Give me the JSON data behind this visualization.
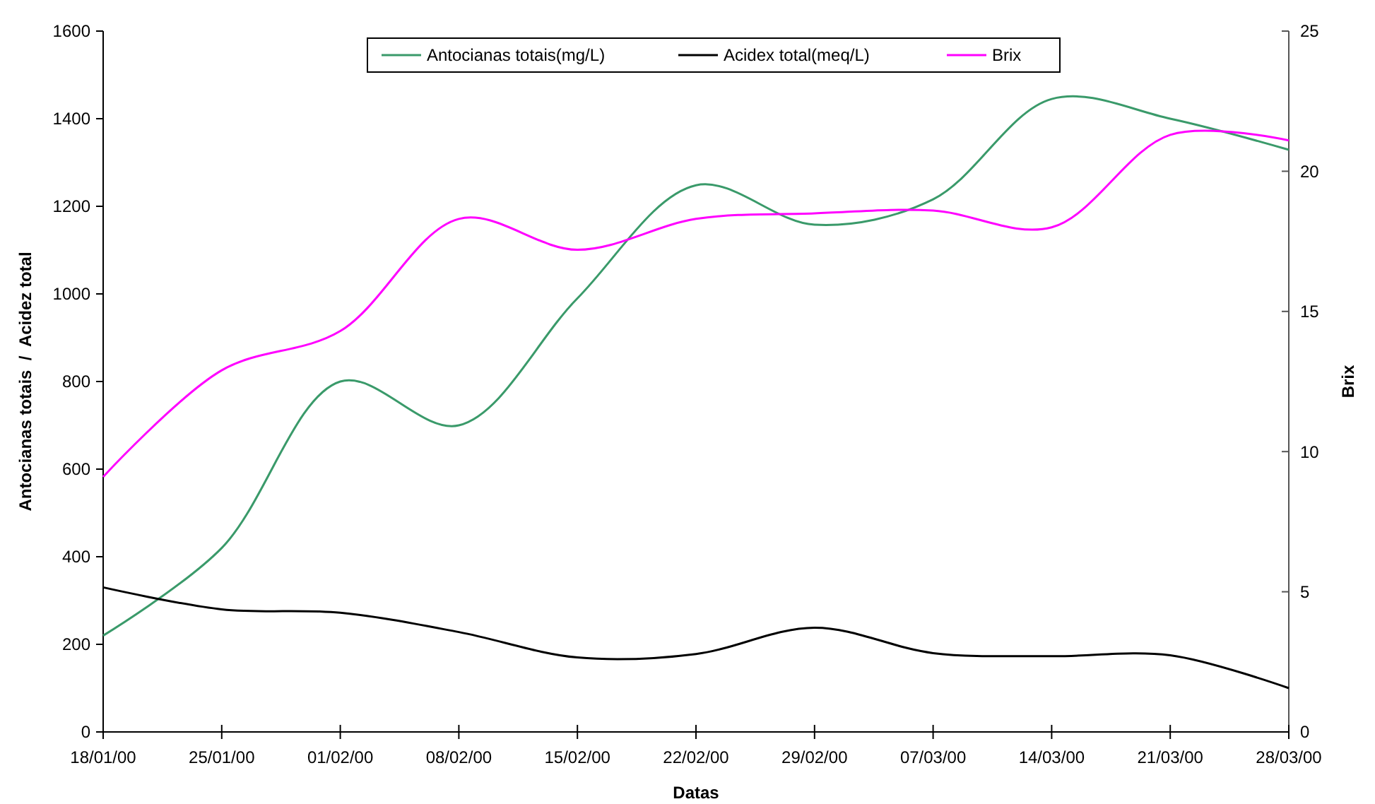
{
  "chart_data": {
    "type": "line",
    "xlabel": "Datas",
    "ylabel": "Antocianas totais  /  Acidez total",
    "y2label": "Brix",
    "x": [
      "2000-01-18",
      "2000-01-25",
      "2000-02-01",
      "2000-02-08",
      "2000-02-15",
      "2000-02-22",
      "2000-02-29",
      "2000-03-07",
      "2000-03-14",
      "2000-03-21",
      "2000-03-28"
    ],
    "series": [
      {
        "name": "Antocianas totais(mg/L)",
        "color": "#3a9a6a",
        "values": [
          220,
          420,
          800,
          700,
          990,
          1248,
          1158,
          1216,
          1445,
          1400,
          1329
        ]
      },
      {
        "name": "Acidex total(meq/L)",
        "color": "#000000",
        "values": [
          330,
          280,
          272,
          228,
          170,
          178,
          238,
          180,
          173,
          175,
          100
        ]
      },
      {
        "name": "Brix",
        "color": "#ff00ff",
        "axis": "y2",
        "values": [
          9.1,
          12.9,
          14.3,
          18.3,
          17.2,
          18.3,
          18.5,
          18.6,
          18.0,
          21.3,
          21.1
        ]
      }
    ],
    "xlim": [
      "2000-01-18",
      "2000-03-28"
    ],
    "xticks": [
      {
        "value": "2000-01-18",
        "label": "18/01/00"
      },
      {
        "value": "2000-01-25",
        "label": "25/01/00"
      },
      {
        "value": "2000-02-01",
        "label": "01/02/00"
      },
      {
        "value": "2000-02-08",
        "label": "08/02/00"
      },
      {
        "value": "2000-02-15",
        "label": "15/02/00"
      },
      {
        "value": "2000-02-22",
        "label": "22/02/00"
      },
      {
        "value": "2000-02-29",
        "label": "29/02/00"
      },
      {
        "value": "2000-03-07",
        "label": "07/03/00"
      },
      {
        "value": "2000-03-14",
        "label": "14/03/00"
      },
      {
        "value": "2000-03-21",
        "label": "21/03/00"
      },
      {
        "value": "2000-03-28",
        "label": "28/03/00"
      }
    ],
    "ylim": [
      0,
      1600
    ],
    "yticks": [
      0,
      200,
      400,
      600,
      800,
      1000,
      1200,
      1400,
      1600
    ],
    "y2lim": [
      0,
      25
    ],
    "y2ticks": [
      0,
      5,
      10,
      15,
      20,
      25
    ],
    "legend": "top",
    "grid": false,
    "marker": "none",
    "line_style": "solid"
  }
}
